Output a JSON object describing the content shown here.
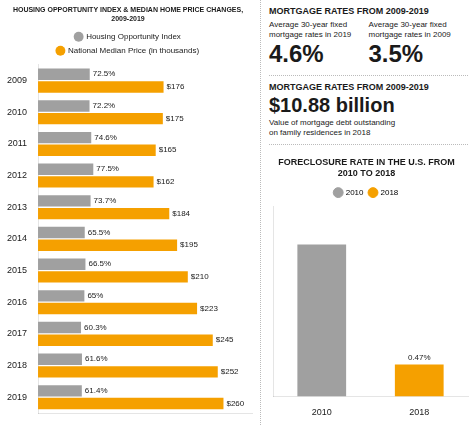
{
  "chart_data": [
    {
      "type": "bar",
      "title": "HOUSING OPPORTUNITY INDEX & MEDIAN HOME PRICE CHANGES,\n2009-2019",
      "orientation": "horizontal",
      "categories": [
        "2009",
        "2010",
        "2011",
        "2012",
        "2013",
        "2014",
        "2015",
        "2016",
        "2017",
        "2018",
        "2019"
      ],
      "series": [
        {
          "name": "Housing Opportunity Index",
          "color": "#A0A0A0",
          "values": [
            72.5,
            72.2,
            74.6,
            77.5,
            73.7,
            65.5,
            66.5,
            65.0,
            60.3,
            61.6,
            61.4
          ],
          "value_labels": [
            "72.5%",
            "72.2%",
            "74.6%",
            "77.5%",
            "73.7%",
            "65.5%",
            "66.5%",
            "65%",
            "60.3%",
            "61.6%",
            "61.4%"
          ]
        },
        {
          "name": "National Median Price (in thousands)",
          "color": "#F5A000",
          "values": [
            176,
            175,
            165,
            162,
            184,
            195,
            210,
            223,
            245,
            252,
            260
          ],
          "value_labels": [
            "$176",
            "$175",
            "$165",
            "$162",
            "$184",
            "$195",
            "$210",
            "$223",
            "$245",
            "$252",
            "$260"
          ]
        }
      ],
      "xlim": [
        0,
        300
      ],
      "grid": false,
      "legend": "top",
      "data_labels": true,
      "tick_labels": "y"
    },
    {
      "type": "bar",
      "title": "FORECLOSURE RATE IN THE U.S. FROM\n2010 TO 2018",
      "categories": [
        "2010",
        "2018"
      ],
      "values": [
        2.23,
        0.47
      ],
      "value_labels": [
        null,
        "0.47%"
      ],
      "colors": [
        "#A0A0A0",
        "#F5A000"
      ],
      "ylim": [
        0,
        2.7875
      ],
      "grid": false,
      "legend": "top",
      "data_labels": true,
      "tick_labels": "x"
    }
  ],
  "annotations": [
    "MORTGAGE RATES  FROM 2009-2019",
    "Average 30-year fixed\nmortgage rates in 2019",
    "4.6%",
    "Average 30-year fixed\nmortgage rates in 2009",
    "3.5%",
    "MORTGAGE RATES  FROM 2009-2019",
    "$10.88 billion",
    "Value of mortgage debt outstanding\non family residences in 2018"
  ]
}
